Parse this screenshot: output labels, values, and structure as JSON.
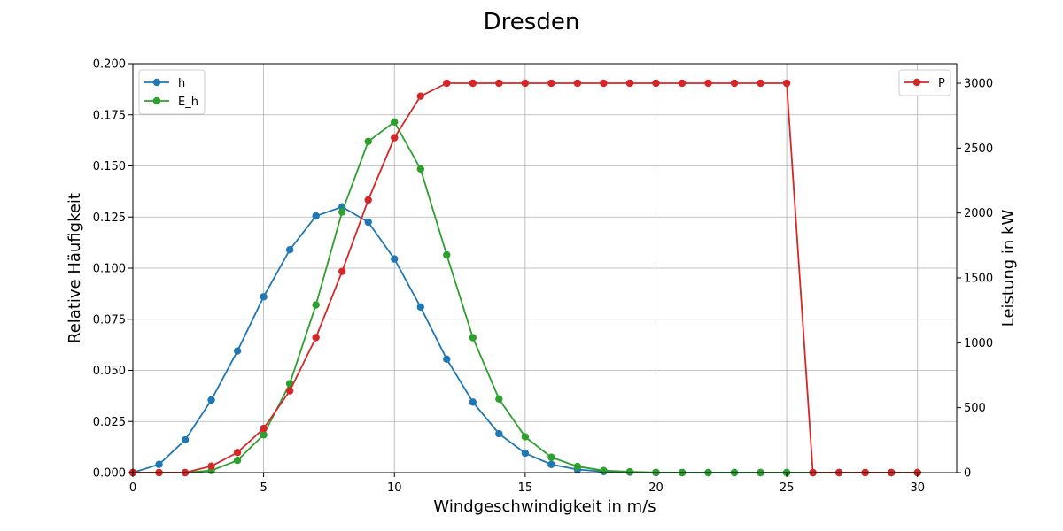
{
  "chart_data": {
    "type": "line",
    "title": "Dresden",
    "xlabel": "Windgeschwindigkeit in m/s",
    "ylabel_left": "Relative Häufigkeit",
    "ylabel_right": "Leistung in kW",
    "xlim": [
      0,
      31.5
    ],
    "ylim_left": [
      0,
      0.2
    ],
    "ylim_right": [
      0,
      3150
    ],
    "grid": true,
    "x_ticks": [
      "0",
      "5",
      "10",
      "15",
      "20",
      "25",
      "30"
    ],
    "y_left_ticks": [
      "0.000",
      "0.025",
      "0.050",
      "0.075",
      "0.100",
      "0.125",
      "0.150",
      "0.175",
      "0.200"
    ],
    "y_right_ticks": [
      "0",
      "500",
      "1000",
      "1500",
      "2000",
      "2500",
      "3000"
    ],
    "legend_left_position": "top-left",
    "legend_right_position": "top-right",
    "x": [
      0,
      1,
      2,
      3,
      4,
      5,
      6,
      7,
      8,
      9,
      10,
      11,
      12,
      13,
      14,
      15,
      16,
      17,
      18,
      19,
      20,
      21,
      22,
      23,
      24,
      25,
      26,
      27,
      28,
      29,
      30
    ],
    "series": [
      {
        "name": "h",
        "axis": "left",
        "color": "#1f77b4",
        "values": [
          0.0,
          0.004,
          0.016,
          0.0355,
          0.0595,
          0.086,
          0.109,
          0.1255,
          0.13,
          0.1225,
          0.1045,
          0.081,
          0.0555,
          0.0345,
          0.019,
          0.0095,
          0.004,
          0.0015,
          0.0005,
          0.0002,
          0.0,
          0.0,
          0.0,
          0.0,
          0.0,
          0.0,
          0.0,
          0.0,
          0.0,
          0.0,
          0.0
        ]
      },
      {
        "name": "E_h",
        "axis": "left",
        "color": "#2ca02c",
        "values": [
          0.0,
          0.0,
          0.0,
          0.001,
          0.006,
          0.0185,
          0.0435,
          0.082,
          0.1275,
          0.162,
          0.1715,
          0.1485,
          0.1065,
          0.066,
          0.036,
          0.0175,
          0.0075,
          0.003,
          0.001,
          0.0004,
          0.0001,
          0.0,
          0.0,
          0.0,
          0.0,
          0.0,
          0.0,
          0.0,
          0.0,
          0.0,
          0.0
        ]
      },
      {
        "name": "P",
        "axis": "right",
        "color": "#d62728",
        "values": [
          0,
          0,
          0,
          50,
          155,
          340,
          630,
          1040,
          1550,
          2100,
          2580,
          2900,
          3000,
          3000,
          3000,
          3000,
          3000,
          3000,
          3000,
          3000,
          3000,
          3000,
          3000,
          3000,
          3000,
          3000,
          0,
          0,
          0,
          0,
          0
        ]
      }
    ]
  }
}
